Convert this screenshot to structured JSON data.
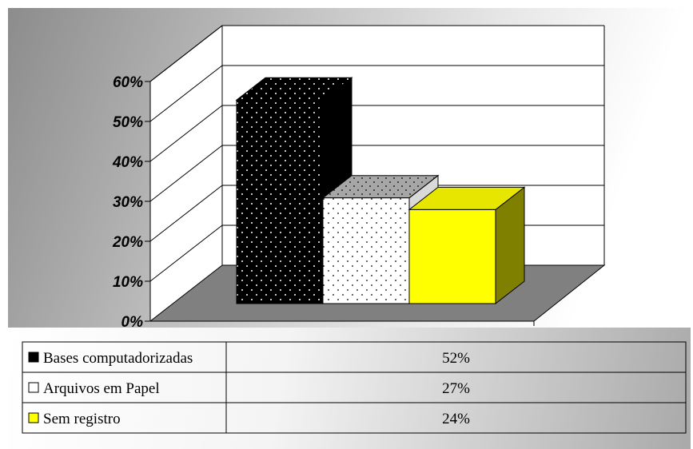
{
  "chart_data": {
    "type": "bar",
    "categories": [
      "Bases computadorizadas",
      "Arquivos em Papel",
      "Sem registro"
    ],
    "values": [
      0.52,
      0.27,
      0.24
    ],
    "value_labels": [
      "52%",
      "27%",
      "24%"
    ],
    "y_ticks": [
      "0%",
      "10%",
      "20%",
      "30%",
      "40%",
      "50%",
      "60%"
    ],
    "ylim": [
      0,
      0.6
    ],
    "grid": true,
    "three_d": true,
    "legend_placement": "data-table-below",
    "colors": {
      "series": [
        "#000000",
        "#ffffff",
        "#ffff00"
      ],
      "series_side": [
        "#000000",
        "#d9d9d9",
        "#808000"
      ],
      "series_top": [
        "#000000",
        "#a6a6a6",
        "#e6e600"
      ],
      "floor": "#808080",
      "walls": "#ffffff"
    }
  }
}
